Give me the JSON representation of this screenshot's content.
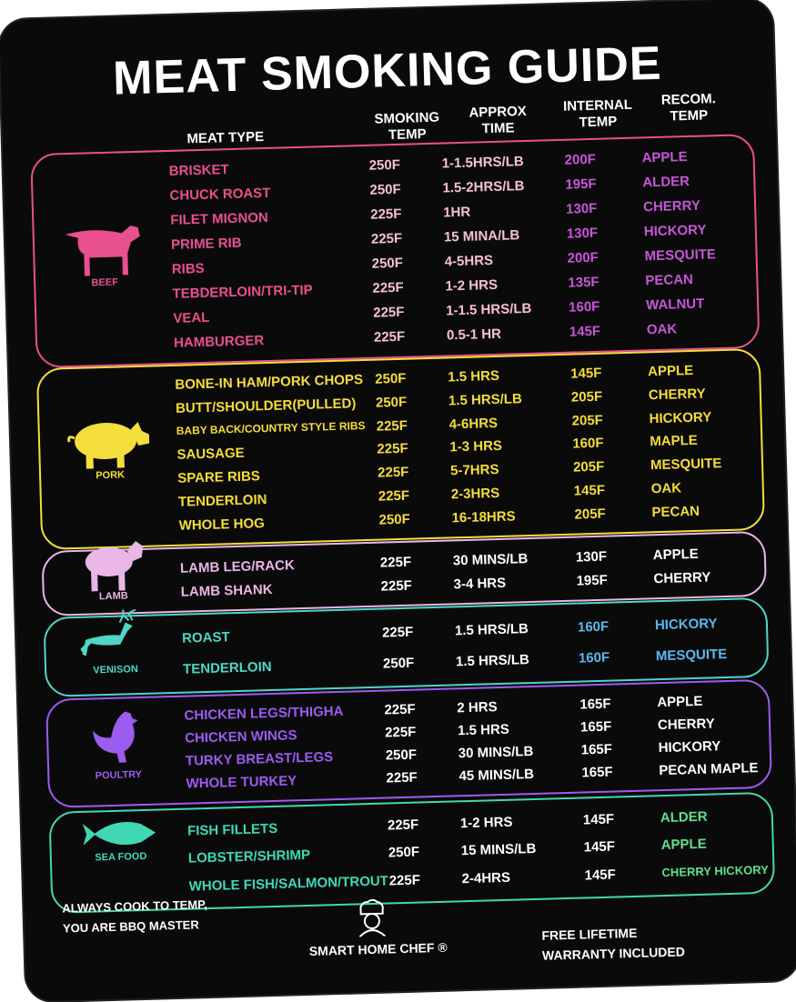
{
  "title": "MEAT SMOKING GUIDE",
  "headers": {
    "meat_type": "MEAT TYPE",
    "smoking_temp": "SMOKING TEMP",
    "approx_time": "APPROX TIME",
    "internal_temp": "INTERNAL TEMP",
    "recom_temp": "RECOM. TEMP"
  },
  "sections": [
    {
      "label": "BEEF",
      "icon": "cow-icon",
      "color": "#e8508f",
      "color2": "#c657d8",
      "rows": [
        [
          "BRISKET",
          "250F",
          "1-1.5HRS/LB",
          "200F",
          "APPLE"
        ],
        [
          "CHUCK ROAST",
          "250F",
          "1.5-2HRS/LB",
          "195F",
          "ALDER"
        ],
        [
          "FILET MIGNON",
          "225F",
          "1HR",
          "130F",
          "CHERRY"
        ],
        [
          "PRIME RIB",
          "225F",
          "15 MINA/LB",
          "130F",
          "HICKORY"
        ],
        [
          "RIBS",
          "250F",
          "4-5HRS",
          "200F",
          "MESQUITE"
        ],
        [
          "TEBDERLOIN/TRI-TIP",
          "225F",
          "1-2 HRS",
          "135F",
          "PECAN"
        ],
        [
          "VEAL",
          "225F",
          "1-1.5 HRS/LB",
          "160F",
          "WALNUT"
        ],
        [
          "HAMBURGER",
          "225F",
          "0.5-1 HR",
          "145F",
          "OAK"
        ]
      ]
    },
    {
      "label": "PORK",
      "icon": "pig-icon",
      "color": "#f3de3c",
      "color2": "#f3de3c",
      "rows": [
        [
          "BONE-IN HAM/PORK CHOPS",
          "250F",
          "1.5 HRS",
          "145F",
          "APPLE"
        ],
        [
          "BUTT/SHOULDER(PULLED)",
          "250F",
          "1.5 HRS/LB",
          "205F",
          "CHERRY"
        ],
        [
          "BABY BACK/COUNTRY STYLE RIBS",
          "225F",
          "4-6HRS",
          "205F",
          "HICKORY"
        ],
        [
          "SAUSAGE",
          "225F",
          "1-3 HRS",
          "160F",
          "MAPLE"
        ],
        [
          "SPARE RIBS",
          "225F",
          "5-7HRS",
          "205F",
          "MESQUITE"
        ],
        [
          "TENDERLOIN",
          "225F",
          "2-3HRS",
          "145F",
          "OAK"
        ],
        [
          "WHOLE HOG",
          "250F",
          "16-18HRS",
          "205F",
          "PECAN"
        ]
      ]
    },
    {
      "label": "LAMB",
      "icon": "lamb-icon",
      "color": "#e9b6e6",
      "color2": "#ffffff",
      "rows": [
        [
          "LAMB LEG/RACK",
          "225F",
          "30 MINS/LB",
          "130F",
          "APPLE"
        ],
        [
          "LAMB SHANK",
          "225F",
          "3-4 HRS",
          "195F",
          "CHERRY"
        ]
      ]
    },
    {
      "label": "VENISON",
      "icon": "deer-icon",
      "color": "#4fd6c4",
      "color2": "#5ab8ee",
      "rows": [
        [
          "ROAST",
          "225F",
          "1.5 HRS/LB",
          "160F",
          "HICKORY"
        ],
        [
          "TENDERLOIN",
          "250F",
          "1.5 HRS/LB",
          "160F",
          "MESQUITE"
        ]
      ]
    },
    {
      "label": "POULTRY",
      "icon": "chicken-icon",
      "color": "#9b5cf0",
      "color2": "#ffffff",
      "rows": [
        [
          "CHICKEN LEGS/THIGHA",
          "225F",
          "2 HRS",
          "165F",
          "APPLE"
        ],
        [
          "CHICKEN WINGS",
          "225F",
          "1.5 HRS",
          "165F",
          "CHERRY"
        ],
        [
          "TURKY BREAST/LEGS",
          "250F",
          "30 MINS/LB",
          "165F",
          "HICKORY"
        ],
        [
          "WHOLE TURKEY",
          "225F",
          "45 MINS/LB",
          "165F",
          "PECAN  MAPLE"
        ]
      ]
    },
    {
      "label": "SEA FOOD",
      "icon": "fish-icon",
      "color": "#40d8b4",
      "color2": "#5fe08a",
      "rows": [
        [
          "FISH FILLETS",
          "225F",
          "1-2 HRS",
          "145F",
          "ALDER"
        ],
        [
          "LOBSTER/SHRIMP",
          "250F",
          "15 MINS/LB",
          "145F",
          "APPLE"
        ],
        [
          "WHOLE FISH/SALMON/TROUT",
          "225F",
          "2-4HRS",
          "145F",
          "CHERRY HICKORY"
        ]
      ]
    }
  ],
  "footer": {
    "left": "ALWAYS COOK TO TEMP, YOU ARE BBQ MASTER",
    "brand": "SMART HOME CHEF ®",
    "right": "FREE LIFETIME WARRANTY INCLUDED",
    "brand_icon": "chef-icon"
  }
}
